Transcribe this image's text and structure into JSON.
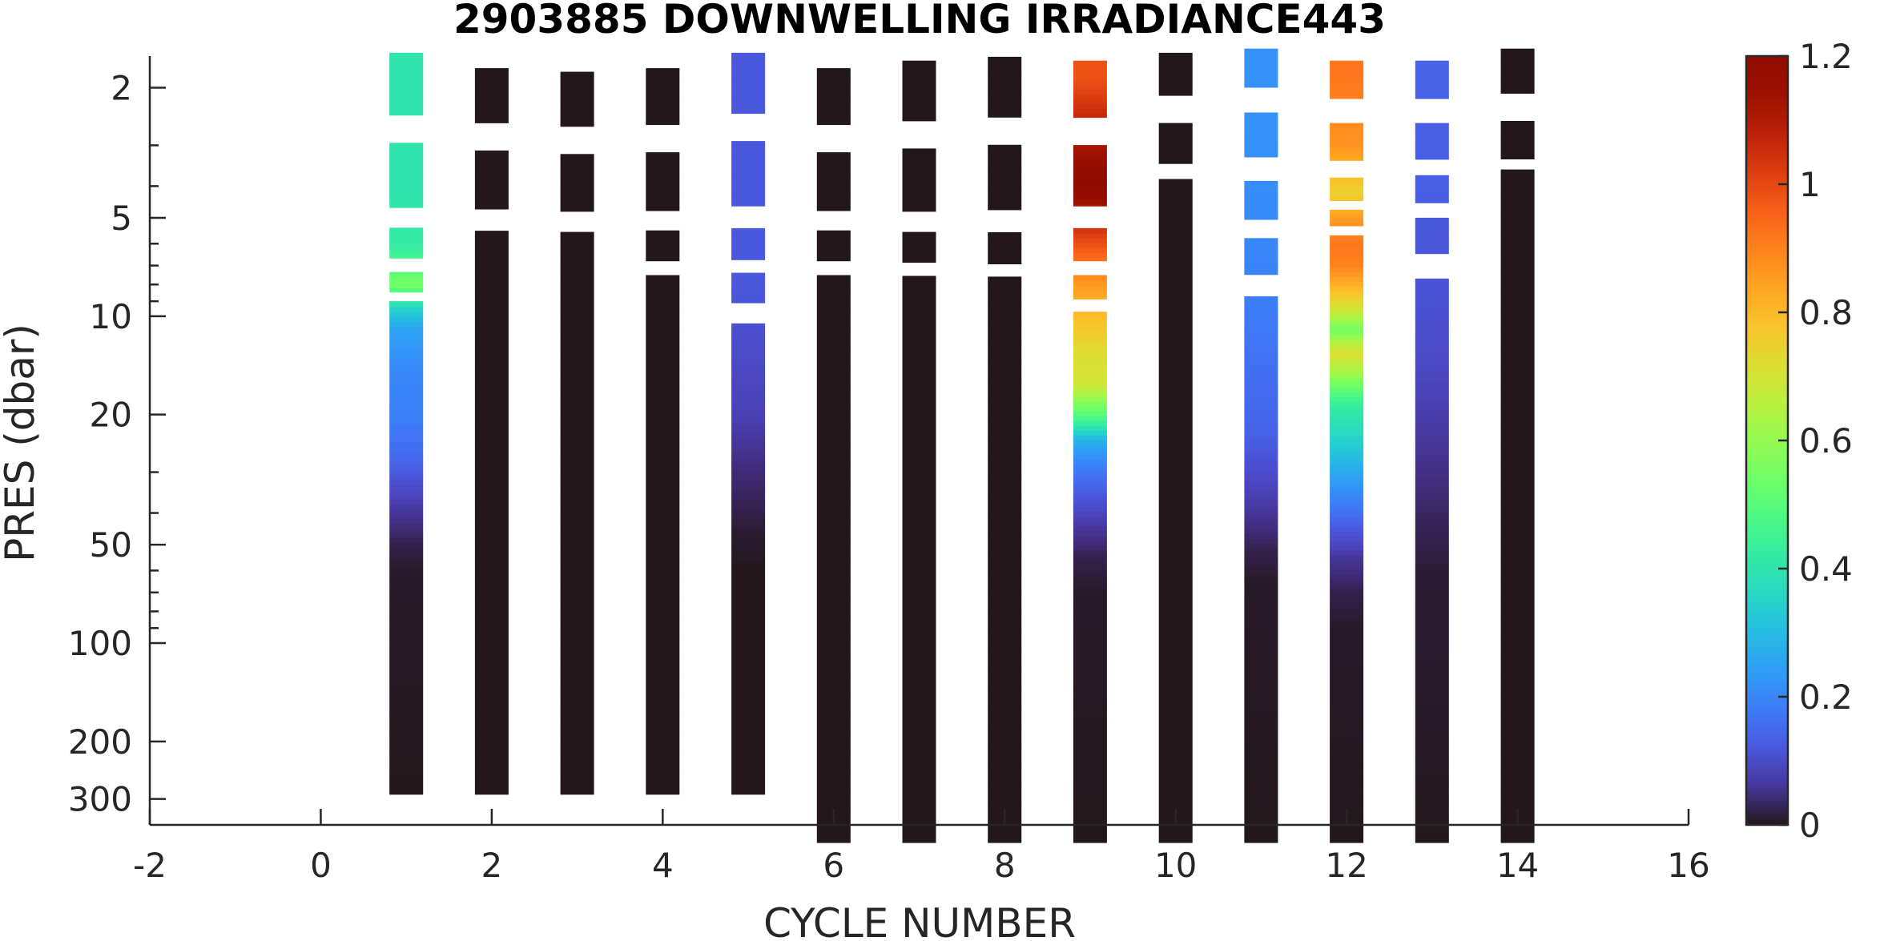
{
  "chart_data": {
    "type": "heatmap",
    "title": "2903885  DOWNWELLING IRRADIANCE443",
    "xlabel": "CYCLE NUMBER",
    "ylabel": "PRES (dbar)",
    "xlim": [
      -2,
      16
    ],
    "ylim": [
      1.6,
      360
    ],
    "yscale": "log",
    "y_reversed": true,
    "x_ticks": [
      "-2",
      "0",
      "2",
      "4",
      "6",
      "8",
      "10",
      "12",
      "14",
      "16"
    ],
    "y_ticks": [
      "2",
      "5",
      "10",
      "20",
      "50",
      "100",
      "200",
      "300"
    ],
    "colorbar": {
      "colormap": "turbo",
      "range": [
        0,
        1.2
      ],
      "ticks": [
        "0",
        "0.2",
        "0.4",
        "0.6",
        "0.8",
        "1",
        "1.2"
      ]
    },
    "grid": false,
    "profiles": [
      {
        "cycle": 1,
        "max_pres": 290,
        "samples": [
          [
            1.75,
            0.4
          ],
          [
            4.1,
            0.4
          ],
          [
            6.1,
            0.42
          ],
          [
            8.0,
            0.55
          ],
          [
            9.5,
            0.35
          ],
          [
            11,
            0.25
          ],
          [
            15,
            0.2
          ],
          [
            20,
            0.19
          ],
          [
            27,
            0.15
          ],
          [
            33,
            0.1
          ],
          [
            40,
            0.06
          ],
          [
            50,
            0.02
          ],
          [
            60,
            0.005
          ],
          [
            290,
            0.0
          ]
        ]
      },
      {
        "cycle": 2,
        "max_pres": 290,
        "samples": [
          [
            1.95,
            0
          ],
          [
            4.1,
            0
          ],
          [
            6.3,
            0
          ],
          [
            290,
            0
          ]
        ]
      },
      {
        "cycle": 3,
        "max_pres": 290,
        "samples": [
          [
            2.0,
            0
          ],
          [
            4.2,
            0
          ],
          [
            6.3,
            0
          ],
          [
            290,
            0
          ]
        ]
      },
      {
        "cycle": 4,
        "max_pres": 290,
        "samples": [
          [
            1.95,
            0
          ],
          [
            4.2,
            0
          ],
          [
            6.2,
            0
          ],
          [
            8.2,
            0
          ],
          [
            290,
            0
          ]
        ]
      },
      {
        "cycle": 5,
        "max_pres": 290,
        "samples": [
          [
            1.75,
            0.12
          ],
          [
            4.0,
            0.12
          ],
          [
            6.2,
            0.12
          ],
          [
            8.0,
            0.12
          ],
          [
            12,
            0.1
          ],
          [
            20,
            0.08
          ],
          [
            30,
            0.04
          ],
          [
            45,
            0.01
          ],
          [
            60,
            0
          ],
          [
            290,
            0
          ]
        ]
      },
      {
        "cycle": 6,
        "max_pres": 420,
        "samples": [
          [
            1.95,
            0
          ],
          [
            4.2,
            0
          ],
          [
            6.2,
            0
          ],
          [
            8.2,
            0
          ],
          [
            420,
            0
          ]
        ]
      },
      {
        "cycle": 7,
        "max_pres": 420,
        "samples": [
          [
            1.85,
            0
          ],
          [
            4.2,
            0
          ],
          [
            6.3,
            0
          ],
          [
            8.2,
            0
          ],
          [
            420,
            0
          ]
        ]
      },
      {
        "cycle": 8,
        "max_pres": 420,
        "samples": [
          [
            1.8,
            0
          ],
          [
            4.1,
            0
          ],
          [
            6.4,
            0
          ],
          [
            8.2,
            0
          ],
          [
            420,
            0
          ]
        ]
      },
      {
        "cycle": 9,
        "max_pres": 420,
        "samples": [
          [
            1.85,
            0.98
          ],
          [
            4.0,
            1.2
          ],
          [
            6.2,
            0.97
          ],
          [
            8.2,
            0.85
          ],
          [
            10.5,
            0.78
          ],
          [
            13,
            0.72
          ],
          [
            16,
            0.7
          ],
          [
            19,
            0.55
          ],
          [
            21,
            0.45
          ],
          [
            24,
            0.28
          ],
          [
            28,
            0.2
          ],
          [
            32,
            0.15
          ],
          [
            38,
            0.1
          ],
          [
            45,
            0.06
          ],
          [
            55,
            0.02
          ],
          [
            70,
            0.005
          ],
          [
            420,
            0
          ]
        ]
      },
      {
        "cycle": 10,
        "max_pres": 420,
        "samples": [
          [
            1.75,
            0
          ],
          [
            3.1,
            0
          ],
          [
            4.2,
            0
          ],
          [
            420,
            0
          ]
        ]
      },
      {
        "cycle": 11,
        "max_pres": 420,
        "samples": [
          [
            1.7,
            0.22
          ],
          [
            2.8,
            0.22
          ],
          [
            4.5,
            0.21
          ],
          [
            6.5,
            0.2
          ],
          [
            10,
            0.18
          ],
          [
            15,
            0.16
          ],
          [
            22,
            0.14
          ],
          [
            30,
            0.1
          ],
          [
            40,
            0.06
          ],
          [
            52,
            0.02
          ],
          [
            65,
            0.005
          ],
          [
            420,
            0
          ]
        ]
      },
      {
        "cycle": 12,
        "max_pres": 420,
        "samples": [
          [
            1.85,
            0.92
          ],
          [
            3.0,
            0.87
          ],
          [
            4.2,
            0.75
          ],
          [
            5.0,
            0.85
          ],
          [
            6.0,
            0.92
          ],
          [
            7.0,
            0.9
          ],
          [
            8.0,
            0.82
          ],
          [
            9.5,
            0.7
          ],
          [
            11,
            0.55
          ],
          [
            13,
            0.72
          ],
          [
            15,
            0.62
          ],
          [
            17,
            0.5
          ],
          [
            19,
            0.42
          ],
          [
            22,
            0.38
          ],
          [
            26,
            0.32
          ],
          [
            30,
            0.26
          ],
          [
            36,
            0.2
          ],
          [
            45,
            0.12
          ],
          [
            55,
            0.06
          ],
          [
            70,
            0.02
          ],
          [
            90,
            0.005
          ],
          [
            420,
            0
          ]
        ]
      },
      {
        "cycle": 13,
        "max_pres": 420,
        "samples": [
          [
            1.85,
            0.14
          ],
          [
            3.0,
            0.13
          ],
          [
            4.1,
            0.13
          ],
          [
            5.5,
            0.12
          ],
          [
            9,
            0.11
          ],
          [
            15,
            0.09
          ],
          [
            25,
            0.06
          ],
          [
            40,
            0.03
          ],
          [
            60,
            0.01
          ],
          [
            420,
            0
          ]
        ]
      },
      {
        "cycle": 14,
        "max_pres": 420,
        "samples": [
          [
            1.7,
            0
          ],
          [
            3.1,
            0
          ],
          [
            3.8,
            0
          ],
          [
            420,
            0
          ]
        ]
      }
    ]
  }
}
